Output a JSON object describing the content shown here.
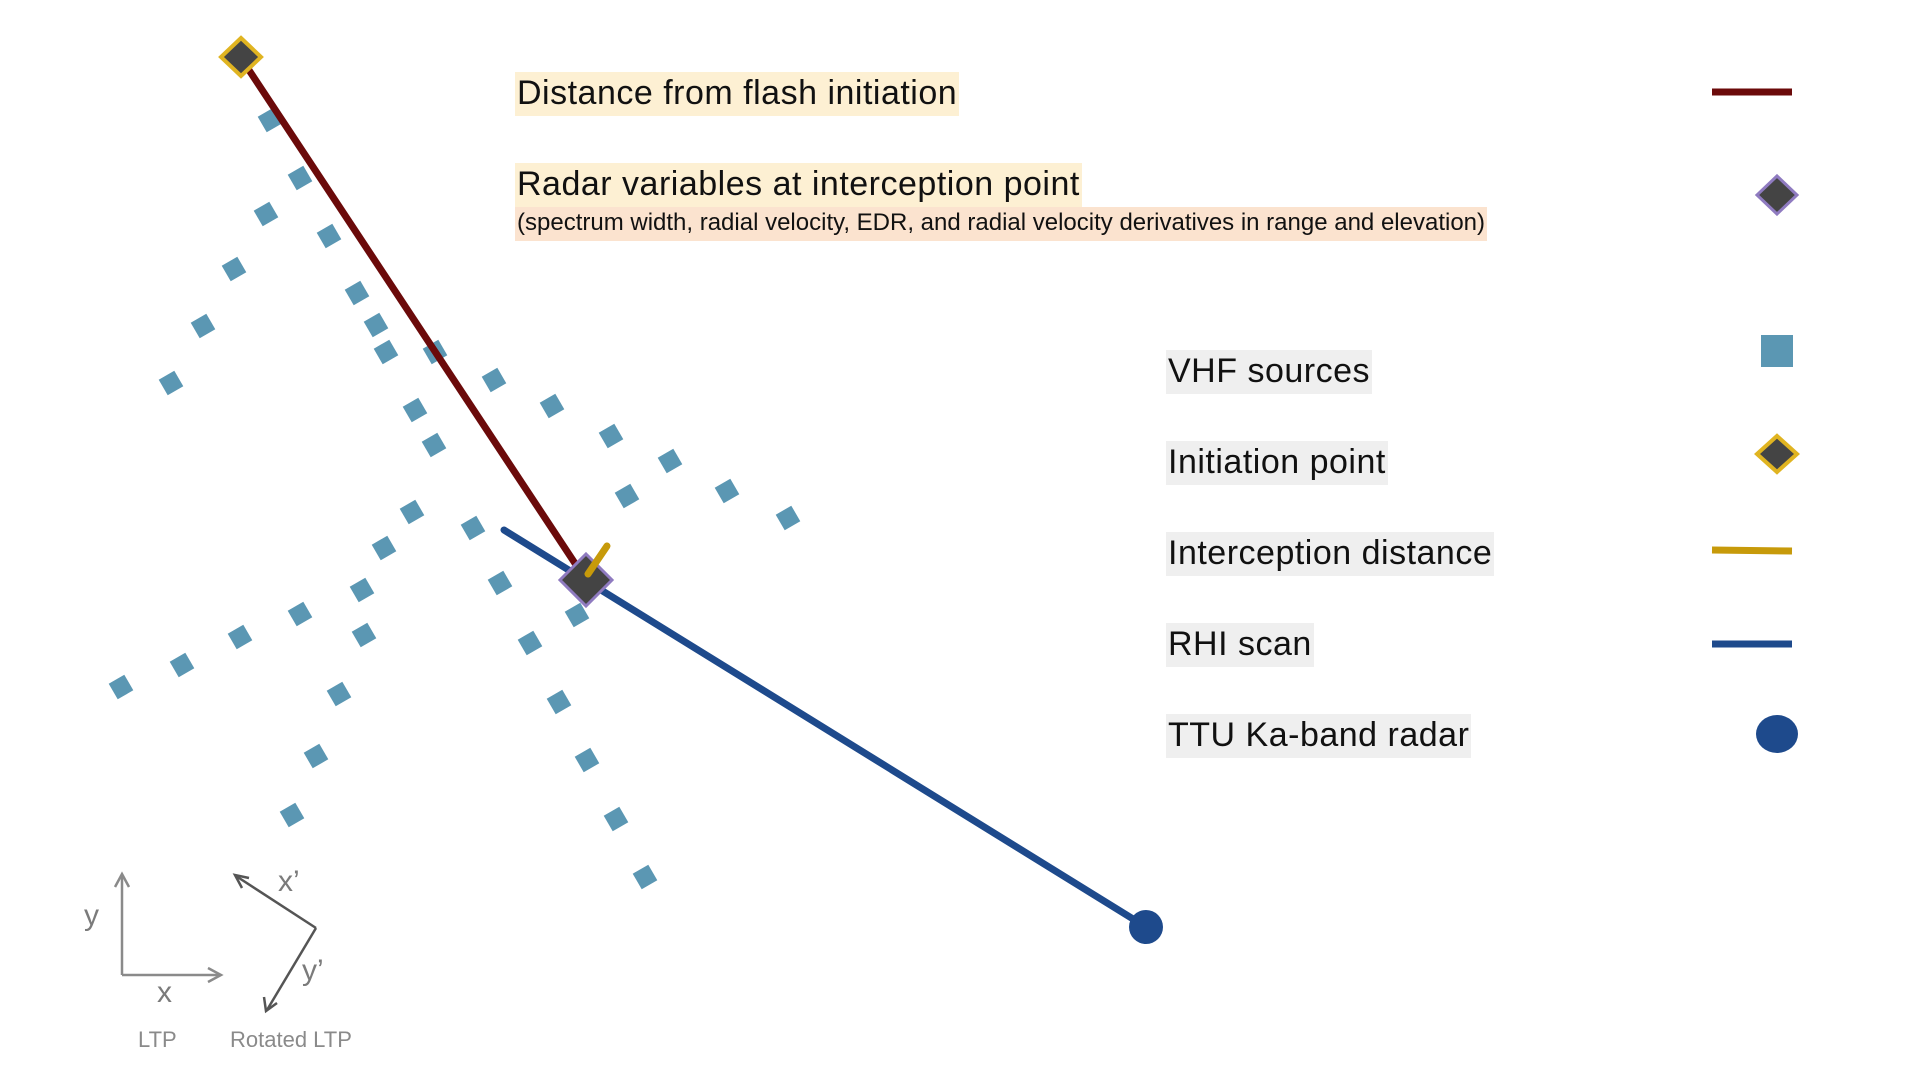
{
  "legend": {
    "distance": "Distance from flash initiation",
    "radar_vars_title": "Radar variables at interception point",
    "radar_vars_sub": "(spectrum width, radial velocity, EDR,  and radial velocity derivatives in range and elevation)",
    "vhf": "VHF sources",
    "initiation": "Initiation point",
    "interception": "Interception distance",
    "rhi": "RHI scan",
    "radar": "TTU Ka-band radar"
  },
  "axes": {
    "y": "y",
    "x": "x",
    "ltp": "LTP",
    "x_prime": "x’",
    "y_prime": "y’",
    "rotated": "Rotated LTP"
  },
  "colors": {
    "distance_line": "#6b0a0a",
    "rhi_line": "#1e4a8c",
    "vhf_square": "#5b97b3",
    "interception_line": "#c79a0a",
    "marker_fill": "#444444",
    "initiation_border": "#e0b421",
    "interception_border": "#8f7bc0",
    "axis_gray": "#7b7b7b"
  }
}
